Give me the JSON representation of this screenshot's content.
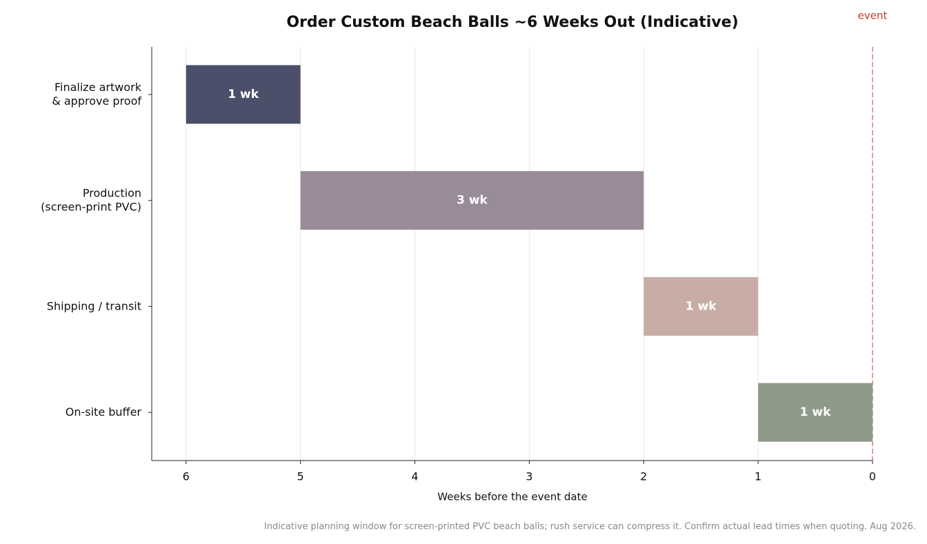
{
  "chart_data": {
    "type": "gantt",
    "title": "Order Custom Beach Balls ~6 Weeks Out (Indicative)",
    "xlabel": "Weeks before the event date",
    "footnote": "Indicative planning window for screen-printed PVC beach balls; rush service can compress it. Confirm actual lead times when quoting. Aug 2026.",
    "categories": [
      "Finalize artwork\n& approve proof",
      "Production\n(screen-print PVC)",
      "Shipping / transit",
      "On-site buffer"
    ],
    "starts": [
      6,
      5,
      2,
      1
    ],
    "values": [
      1,
      3,
      1,
      1
    ],
    "value_labels": [
      "1 wk",
      "3 wk",
      "1 wk",
      "1 wk"
    ],
    "colors": [
      "#4b4f69",
      "#9a8b98",
      "#c8ada6",
      "#8e9a88"
    ],
    "xlim": [
      6.3,
      0
    ],
    "xticks": [
      6,
      5,
      4,
      3,
      2,
      1,
      0
    ],
    "grid": true,
    "event_marker": {
      "x": 0,
      "label": "event",
      "color": "#c0392b"
    }
  }
}
